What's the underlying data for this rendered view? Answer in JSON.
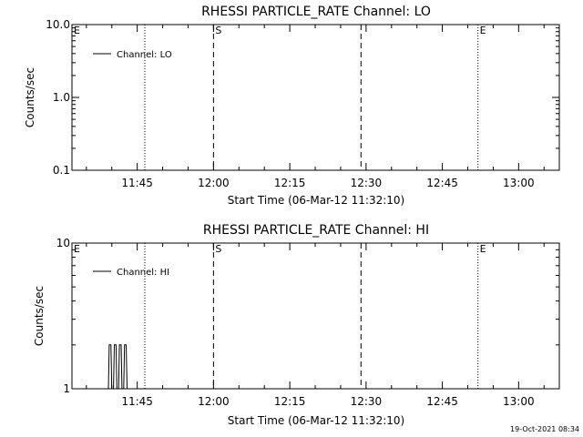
{
  "chart_data": [
    {
      "type": "line",
      "title": "RHESSI PARTICLE_RATE Channel: LO",
      "xlabel": "Start Time (06-Mar-12 11:32:10)",
      "ylabel": "Counts/sec",
      "y_scale": "log",
      "ylim": [
        0.1,
        10.0
      ],
      "y_ticks": [
        {
          "value": 0.1,
          "label": "0.1"
        },
        {
          "value": 1.0,
          "label": "1.0"
        },
        {
          "value": 10.0,
          "label": "10.0"
        }
      ],
      "xlim": [
        "11:32:10",
        "13:08:00"
      ],
      "x_ticks": [
        "11:45",
        "12:00",
        "12:15",
        "12:30",
        "12:45",
        "13:00"
      ],
      "legend": {
        "placement": "top-left",
        "entries": [
          "Channel: LO"
        ]
      },
      "series": [
        {
          "name": "Channel: LO",
          "x": [],
          "y": []
        }
      ],
      "markers": [
        {
          "time": "11:32:10",
          "label": "E",
          "style": "none"
        },
        {
          "time": "11:46:30",
          "label": "",
          "style": "dotted"
        },
        {
          "time": "12:00:00",
          "label": "S",
          "style": "dashed"
        },
        {
          "time": "12:29:00",
          "label": "",
          "style": "dashed"
        },
        {
          "time": "12:52:00",
          "label": "E",
          "style": "dotted"
        },
        {
          "time": "13:08:00",
          "label": "",
          "style": "dotted"
        }
      ]
    },
    {
      "type": "line",
      "title": "RHESSI PARTICLE_RATE Channel: HI",
      "xlabel": "Start Time (06-Mar-12 11:32:10)",
      "ylabel": "Counts/sec",
      "y_scale": "log",
      "ylim": [
        1,
        10
      ],
      "y_ticks": [
        {
          "value": 1,
          "label": "1"
        },
        {
          "value": 10,
          "label": "10"
        }
      ],
      "xlim": [
        "11:32:10",
        "13:08:00"
      ],
      "x_ticks": [
        "11:45",
        "12:00",
        "12:15",
        "12:30",
        "12:45",
        "13:00"
      ],
      "legend": {
        "placement": "top-left",
        "entries": [
          "Channel: HI"
        ]
      },
      "series": [
        {
          "name": "Channel: HI",
          "x": [
            "11:39:20",
            "11:39:30",
            "11:39:50",
            "11:40:00",
            "11:40:20",
            "11:40:30",
            "11:40:50",
            "11:41:00",
            "11:41:20",
            "11:41:30",
            "11:41:50",
            "11:42:00",
            "11:42:20",
            "11:42:30",
            "11:42:50",
            "11:43:00",
            "11:43:20"
          ],
          "y": [
            1,
            2,
            2,
            1,
            1,
            2,
            2,
            1,
            1,
            2,
            2,
            1,
            1,
            2,
            2,
            1,
            1
          ]
        }
      ],
      "markers": [
        {
          "time": "11:32:10",
          "label": "E",
          "style": "none"
        },
        {
          "time": "11:46:30",
          "label": "",
          "style": "dotted"
        },
        {
          "time": "12:00:00",
          "label": "S",
          "style": "dashed"
        },
        {
          "time": "12:29:00",
          "label": "",
          "style": "dashed"
        },
        {
          "time": "12:52:00",
          "label": "E",
          "style": "dotted"
        },
        {
          "time": "13:08:00",
          "label": "",
          "style": "dotted"
        }
      ]
    }
  ],
  "timestamp": "19-Oct-2021 08:34"
}
